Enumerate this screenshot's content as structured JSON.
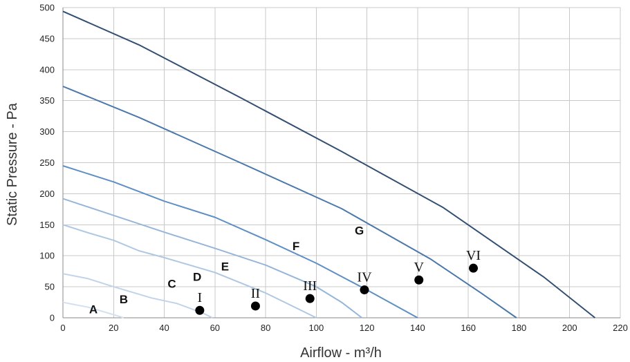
{
  "chart_data": {
    "type": "line",
    "title": "",
    "xlabel": "Airflow - m³/h",
    "ylabel": "Static Pressure - Pa",
    "xlim": [
      0,
      220
    ],
    "ylim": [
      0,
      500
    ],
    "xticks": [
      0,
      20,
      40,
      60,
      80,
      100,
      120,
      140,
      160,
      180,
      200,
      220
    ],
    "yticks": [
      0,
      50,
      100,
      150,
      200,
      250,
      300,
      350,
      400,
      450,
      500
    ],
    "grid": true,
    "colors": {
      "A": "#d3e0ef",
      "B": "#c0d3ea",
      "C": "#aec8e3",
      "D": "#95b6da",
      "E": "#5d8fc4",
      "F": "#4a78ab",
      "G": "#324f73",
      "grid": "#c8c8c8",
      "point": "#000000"
    },
    "series": [
      {
        "name": "A",
        "points": [
          [
            0,
            25
          ],
          [
            10,
            17
          ],
          [
            20,
            5
          ],
          [
            24,
            0
          ]
        ]
      },
      {
        "name": "B",
        "points": [
          [
            0,
            71
          ],
          [
            10,
            63
          ],
          [
            20,
            50
          ],
          [
            35,
            32
          ],
          [
            45,
            23
          ],
          [
            55,
            8
          ],
          [
            59,
            0
          ]
        ]
      },
      {
        "name": "C",
        "points": [
          [
            0,
            150
          ],
          [
            10,
            137
          ],
          [
            20,
            125
          ],
          [
            30,
            108
          ],
          [
            40,
            97
          ],
          [
            60,
            73
          ],
          [
            80,
            40
          ],
          [
            90,
            20
          ],
          [
            100,
            0
          ]
        ]
      },
      {
        "name": "D",
        "points": [
          [
            0,
            192
          ],
          [
            20,
            165
          ],
          [
            40,
            138
          ],
          [
            60,
            112
          ],
          [
            80,
            85
          ],
          [
            100,
            50
          ],
          [
            110,
            25
          ],
          [
            118,
            0
          ]
        ]
      },
      {
        "name": "E",
        "points": [
          [
            0,
            245
          ],
          [
            20,
            219
          ],
          [
            40,
            188
          ],
          [
            60,
            162
          ],
          [
            80,
            126
          ],
          [
            100,
            88
          ],
          [
            120,
            45
          ],
          [
            140,
            0
          ]
        ]
      },
      {
        "name": "F",
        "points": [
          [
            0,
            373
          ],
          [
            30,
            323
          ],
          [
            70,
            250
          ],
          [
            110,
            176
          ],
          [
            145,
            95
          ],
          [
            165,
            40
          ],
          [
            179,
            0
          ]
        ]
      },
      {
        "name": "G",
        "points": [
          [
            0,
            494
          ],
          [
            30,
            440
          ],
          [
            70,
            355
          ],
          [
            110,
            268
          ],
          [
            150,
            178
          ],
          [
            190,
            65
          ],
          [
            210,
            0
          ]
        ]
      }
    ],
    "curve_labels": [
      {
        "text": "A",
        "x": 12,
        "y": 14
      },
      {
        "text": "B",
        "x": 24,
        "y": 30
      },
      {
        "text": "C",
        "x": 43,
        "y": 55
      },
      {
        "text": "D",
        "x": 53,
        "y": 66
      },
      {
        "text": "E",
        "x": 64,
        "y": 83
      },
      {
        "text": "F",
        "x": 92,
        "y": 116
      },
      {
        "text": "G",
        "x": 117,
        "y": 141
      }
    ],
    "operating_points": [
      {
        "label": "I",
        "x": 54,
        "y": 12
      },
      {
        "label": "II",
        "x": 76,
        "y": 19
      },
      {
        "label": "III",
        "x": 97.5,
        "y": 31
      },
      {
        "label": "IV",
        "x": 119,
        "y": 45
      },
      {
        "label": "V",
        "x": 140.5,
        "y": 61
      },
      {
        "label": "VI",
        "x": 162,
        "y": 80
      }
    ]
  }
}
